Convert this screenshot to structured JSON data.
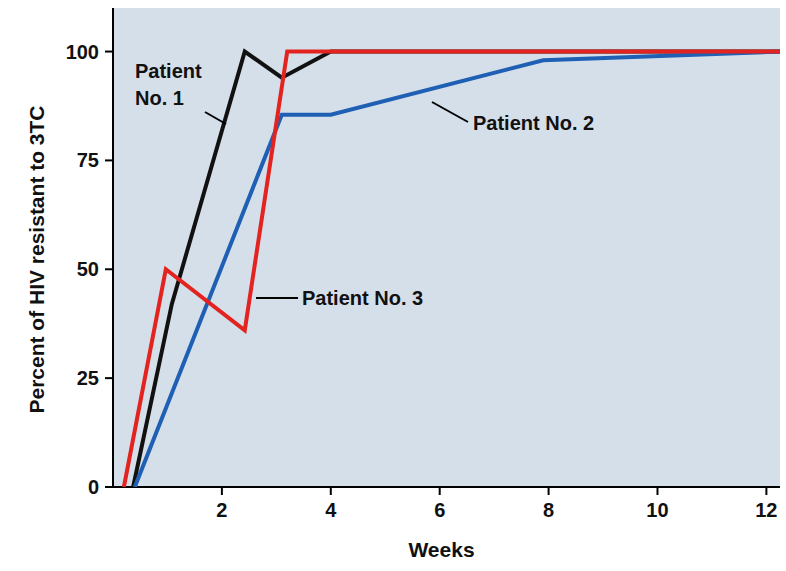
{
  "chart_data": {
    "type": "line",
    "x_label": "Weeks",
    "y_label": "Percent of HIV resistant to 3TC",
    "xlim": [
      0,
      12.25
    ],
    "xticks": [
      2,
      4,
      6,
      8,
      10,
      12
    ],
    "ylim": [
      0,
      110
    ],
    "yticks": [
      0,
      25,
      50,
      75,
      100
    ],
    "grid": false,
    "series": [
      {
        "name": "Patient No. 1",
        "color": "#111111",
        "x": [
          0.37,
          1.08,
          2.42,
          3.1,
          4,
          12.25
        ],
        "values": [
          0,
          42,
          100,
          94,
          100,
          100
        ]
      },
      {
        "name": "Patient No. 2",
        "color": "#1f5fb4",
        "x": [
          0.4,
          3.1,
          4,
          7.9,
          12.25
        ],
        "values": [
          0,
          85.5,
          85.5,
          98,
          100
        ]
      },
      {
        "name": "Patient No. 3",
        "color": "#e3231f",
        "x": [
          0.2,
          0.97,
          2.42,
          3.2,
          12.25
        ],
        "values": [
          0,
          50,
          36,
          100,
          100
        ]
      }
    ]
  }
}
